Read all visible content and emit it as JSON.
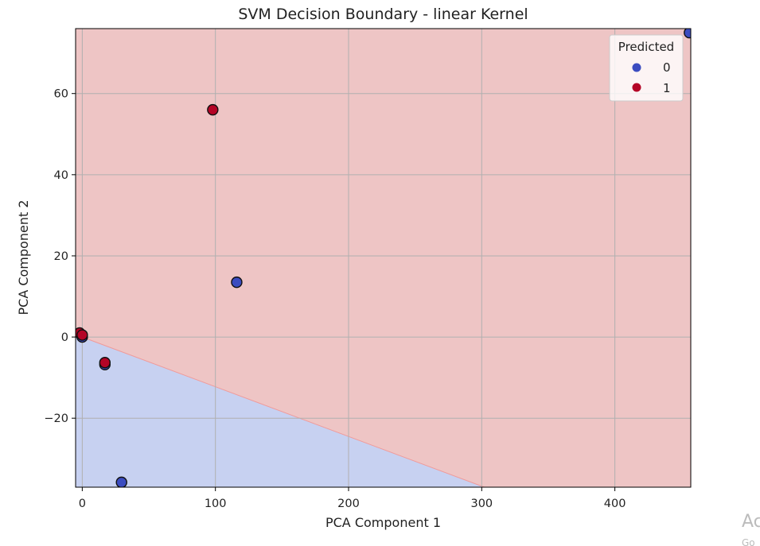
{
  "chart_data": {
    "type": "scatter",
    "title": "SVM Decision Boundary - linear Kernel",
    "xlabel": "PCA Component 1",
    "ylabel": "PCA Component 2",
    "xlim": [
      -5,
      457
    ],
    "ylim": [
      -37,
      76
    ],
    "xticks": [
      0,
      100,
      200,
      300,
      400
    ],
    "yticks": [
      -20,
      0,
      20,
      40,
      60
    ],
    "xtick_labels": [
      "0",
      "100",
      "200",
      "300",
      "400"
    ],
    "ytick_labels": [
      "−20",
      "0",
      "20",
      "40",
      "60"
    ],
    "grid": true,
    "decision_boundary": {
      "kernel": "linear",
      "line": [
        [
          0,
          0
        ],
        [
          302,
          -37
        ]
      ]
    },
    "region_colors": {
      "class_0": "#c7d1f1",
      "class_1": "#eec5c5"
    },
    "legend": {
      "title": "Predicted",
      "placement": "top-right",
      "entries": [
        {
          "label": "0",
          "color": "#3b4cc0"
        },
        {
          "label": "1",
          "color": "#b40426"
        }
      ]
    },
    "series": [
      {
        "color": "#3b4cc0",
        "points": [
          [
            116,
            13.5
          ],
          [
            29.5,
            -35.8
          ],
          [
            456,
            75
          ],
          [
            17,
            -6.8
          ],
          [
            0,
            0
          ]
        ]
      },
      {
        "color": "#b40426",
        "points": [
          [
            98,
            56
          ],
          [
            17,
            -6.3
          ],
          [
            -2,
            1
          ],
          [
            0,
            0.5
          ]
        ]
      }
    ]
  },
  "watermark": {
    "main": "Ac",
    "sub": "Go"
  }
}
